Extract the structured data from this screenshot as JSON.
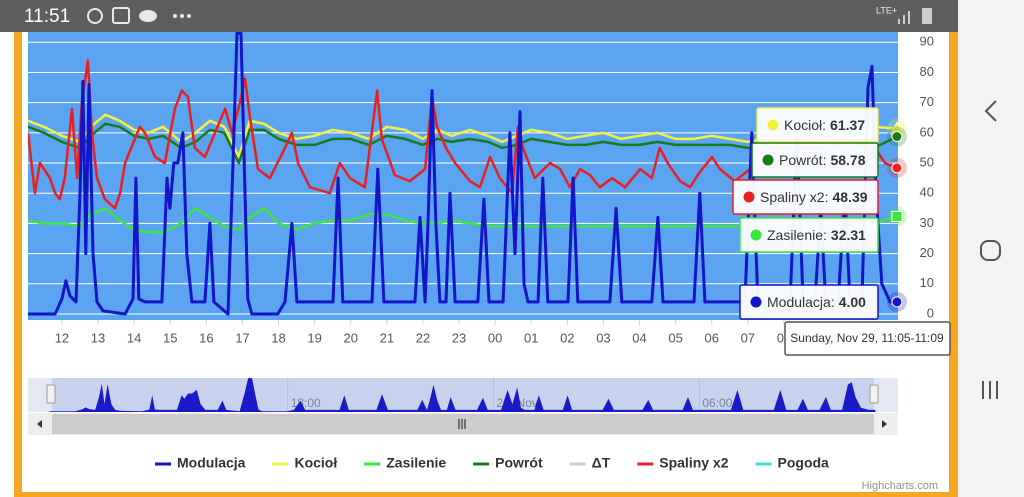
{
  "status_bar": {
    "time": "11:51",
    "network": "LTE+"
  },
  "chart_data": {
    "type": "line",
    "ylim": [
      -2,
      93.4
    ],
    "yticks": [
      0,
      10,
      20,
      30,
      40,
      50,
      60,
      70,
      80,
      90
    ],
    "xlim": [
      11.06,
      35.16
    ],
    "xticks": [
      12,
      13,
      14,
      15,
      16,
      17,
      18,
      19,
      20,
      21,
      22,
      23,
      {
        "value": 24,
        "label": "00"
      },
      {
        "value": 25,
        "label": "01"
      },
      {
        "value": 26,
        "label": "02"
      },
      {
        "value": 27,
        "label": "03"
      },
      {
        "value": 28,
        "label": "04"
      },
      {
        "value": 29,
        "label": "05"
      },
      {
        "value": 30,
        "label": "06"
      },
      {
        "value": 31,
        "label": "07"
      },
      {
        "value": 32,
        "label": "08"
      }
    ],
    "grid": true,
    "background": "#5aa4f2",
    "series": [
      {
        "name": "Modulacja",
        "color": "#1515c8",
        "visible": true,
        "x": [
          11.06,
          11.81,
          12.0,
          12.11,
          12.22,
          12.39,
          12.5,
          12.58,
          12.66,
          12.75,
          12.86,
          12.97,
          13.14,
          13.75,
          13.97,
          14.05,
          14.13,
          14.3,
          14.77,
          14.91,
          14.99,
          15.1,
          15.21,
          15.35,
          15.46,
          15.6,
          15.96,
          16.1,
          16.21,
          16.6,
          16.74,
          16.85,
          16.96,
          17.07,
          17.15,
          17.26,
          17.98,
          18.18,
          18.37,
          18.51,
          18.68,
          19.51,
          19.65,
          19.78,
          20.59,
          20.75,
          20.92,
          21.78,
          21.92,
          22.06,
          22.14,
          22.25,
          22.36,
          22.47,
          22.64,
          22.75,
          22.89,
          23.52,
          23.69,
          23.83,
          24.22,
          24.41,
          24.55,
          24.69,
          24.8,
          24.91,
          25.19,
          25.32,
          25.46,
          26.02,
          26.16,
          26.29,
          27.18,
          27.35,
          27.51,
          28.34,
          28.51,
          28.65,
          29.51,
          29.67,
          29.81,
          30.92,
          31.11,
          31.28,
          32.17,
          32.36,
          32.53,
          32.86,
          33.02,
          33.16,
          33.5,
          33.69,
          33.83,
          34.16,
          34.33,
          34.44,
          34.55,
          34.71,
          34.94,
          35.13
        ],
        "values": [
          0,
          0,
          5,
          11,
          6,
          4,
          40,
          77,
          20,
          76,
          20,
          4,
          1,
          0,
          5,
          45,
          5,
          4,
          4,
          45,
          35,
          50,
          50,
          60,
          20,
          4,
          4,
          30,
          4,
          0,
          50,
          93,
          93,
          40,
          5,
          0,
          0,
          4,
          30,
          4,
          4,
          4,
          45,
          4,
          4,
          48,
          4,
          4,
          32,
          4,
          30,
          74,
          30,
          4,
          4,
          40,
          4,
          4,
          38,
          4,
          4,
          60,
          20,
          67,
          10,
          4,
          4,
          45,
          4,
          4,
          45,
          4,
          4,
          35,
          4,
          4,
          32,
          4,
          4,
          40,
          4,
          4,
          60,
          4,
          4,
          60,
          4,
          4,
          35,
          4,
          4,
          40,
          4,
          4,
          75,
          82,
          40,
          10,
          4,
          4.0
        ]
      },
      {
        "name": "Kocioł",
        "color": "#f2f23c",
        "visible": true,
        "x": [
          11.06,
          11.5,
          12.0,
          12.5,
          12.8,
          13.2,
          13.6,
          14.0,
          14.4,
          14.8,
          15.3,
          15.7,
          16.1,
          16.5,
          16.9,
          17.2,
          17.6,
          18.0,
          18.5,
          19.0,
          19.5,
          20.0,
          20.5,
          21.0,
          21.5,
          22.0,
          22.4,
          22.8,
          23.3,
          23.8,
          24.2,
          24.6,
          25.0,
          25.5,
          26.0,
          26.5,
          27.0,
          27.5,
          28.0,
          28.5,
          29.0,
          29.5,
          30.0,
          30.5,
          31.0,
          31.5,
          32.0,
          32.5,
          33.0,
          33.5,
          34.0,
          34.5,
          35.13
        ],
        "values": [
          64,
          62,
          59,
          57,
          62,
          66,
          64,
          61,
          60,
          62,
          57,
          60,
          64,
          62,
          52,
          64,
          63,
          60,
          58,
          59,
          61,
          60,
          58,
          62,
          61,
          58,
          61,
          59,
          61,
          59,
          57,
          59,
          61,
          60,
          58,
          59,
          60,
          58,
          59,
          60,
          58,
          58,
          59,
          58,
          57,
          58,
          57,
          58,
          57,
          59,
          58,
          62,
          61.37
        ]
      },
      {
        "name": "Zasilenie",
        "color": "#3ce63c",
        "visible": true,
        "x": [
          11.06,
          11.5,
          12.0,
          12.5,
          12.8,
          13.2,
          13.6,
          14.0,
          14.4,
          14.8,
          15.3,
          15.7,
          16.1,
          16.5,
          16.9,
          17.2,
          17.6,
          18.0,
          18.5,
          19.0,
          19.5,
          20.0,
          20.5,
          21.0,
          21.5,
          22.0,
          22.4,
          22.8,
          23.3,
          23.8,
          24.2,
          24.6,
          25.0,
          25.5,
          26.0,
          26.5,
          27.0,
          27.5,
          28.0,
          28.5,
          29.0,
          29.5,
          30.0,
          30.5,
          31.0,
          31.5,
          32.0,
          32.5,
          33.0,
          33.5,
          34.0,
          34.5,
          35.13
        ],
        "values": [
          31,
          30,
          30,
          29,
          33,
          35,
          31,
          28,
          27,
          27,
          30,
          35,
          32,
          29,
          28,
          32,
          35,
          30,
          28,
          30,
          31,
          31,
          33,
          33,
          31,
          30,
          30,
          31,
          30,
          29,
          29,
          29,
          29,
          29,
          29,
          29,
          29,
          29,
          29,
          29,
          29,
          29,
          29,
          29,
          29,
          29,
          29,
          29,
          29,
          29,
          29,
          30,
          32.31
        ]
      },
      {
        "name": "Powrót",
        "color": "#1a7a1a",
        "visible": true,
        "x": [
          11.06,
          11.5,
          12.0,
          12.5,
          12.8,
          13.2,
          13.6,
          14.0,
          14.4,
          14.8,
          15.3,
          15.7,
          16.1,
          16.5,
          16.9,
          17.2,
          17.6,
          18.0,
          18.5,
          19.0,
          19.5,
          20.0,
          20.5,
          21.0,
          21.5,
          22.0,
          22.4,
          22.8,
          23.3,
          23.8,
          24.2,
          24.6,
          25.0,
          25.5,
          26.0,
          26.5,
          27.0,
          27.5,
          28.0,
          28.5,
          29.0,
          29.5,
          30.0,
          30.5,
          31.0,
          31.5,
          32.0,
          32.5,
          33.0,
          33.5,
          34.0,
          34.5,
          35.13
        ],
        "values": [
          62,
          60,
          57,
          55,
          59,
          63,
          62,
          59,
          58,
          59,
          55,
          57,
          61,
          60,
          50,
          61,
          61,
          58,
          56,
          56,
          58,
          58,
          56,
          59,
          58,
          56,
          58,
          57,
          58,
          57,
          55,
          56,
          58,
          57,
          56,
          56,
          57,
          56,
          56,
          57,
          56,
          56,
          56,
          56,
          55,
          55,
          55,
          55,
          55,
          56,
          56,
          55,
          58.78
        ]
      },
      {
        "name": "ΔT",
        "color": "#cccccc",
        "visible": false,
        "x": [],
        "values": []
      },
      {
        "name": "Spaliny x2",
        "color": "#e82020",
        "visible": true,
        "x": [
          11.06,
          11.25,
          11.39,
          11.67,
          11.81,
          11.94,
          12.08,
          12.28,
          12.42,
          12.55,
          12.72,
          12.83,
          12.97,
          13.19,
          13.47,
          13.61,
          13.75,
          14.02,
          14.16,
          14.3,
          14.58,
          14.85,
          15.13,
          15.32,
          15.49,
          15.68,
          15.96,
          16.24,
          16.52,
          16.71,
          16.93,
          17.07,
          17.21,
          17.43,
          17.76,
          18.18,
          18.37,
          18.54,
          18.87,
          19.42,
          19.7,
          19.98,
          20.39,
          20.73,
          20.86,
          21.22,
          21.64,
          22.06,
          22.25,
          22.39,
          22.64,
          22.89,
          23.3,
          23.58,
          23.86,
          24.13,
          24.47,
          24.63,
          24.77,
          25.1,
          25.52,
          25.8,
          26.07,
          26.35,
          26.63,
          26.9,
          27.24,
          27.6,
          28.02,
          28.34,
          28.56,
          28.78,
          29.12,
          29.4,
          29.67,
          30.01,
          30.23,
          30.64,
          31.06,
          31.47,
          31.89,
          32.44,
          33.0,
          33.55,
          34.11,
          34.52,
          34.8,
          35.13
        ],
        "values": [
          60,
          40,
          50,
          45,
          40,
          38,
          45,
          68,
          45,
          70,
          84,
          60,
          45,
          38,
          35,
          40,
          50,
          58,
          62,
          60,
          52,
          50,
          68,
          74,
          72,
          55,
          52,
          60,
          68,
          60,
          70,
          78,
          65,
          48,
          45,
          55,
          60,
          50,
          42,
          40,
          50,
          45,
          42,
          74,
          58,
          46,
          44,
          48,
          72,
          62,
          55,
          50,
          44,
          42,
          52,
          45,
          40,
          62,
          55,
          45,
          50,
          48,
          42,
          48,
          46,
          42,
          45,
          42,
          48,
          45,
          55,
          50,
          44,
          42,
          47,
          52,
          48,
          44,
          48,
          50,
          46,
          52,
          50,
          48,
          50,
          55,
          50,
          48.39
        ]
      },
      {
        "name": "Pogoda",
        "color": "#33e6e6",
        "visible": true,
        "x": [],
        "values": []
      }
    ],
    "tooltip": {
      "header": "Sunday, Nov 29, 11:05-11:09",
      "rows": [
        {
          "label": "Kocioł:",
          "value": "61.37"
        },
        {
          "label": "Powrót:",
          "value": "58.78"
        },
        {
          "label": "Spaliny x2:",
          "value": "48.39"
        },
        {
          "label": "Zasilenie:",
          "value": "32.31"
        },
        {
          "label": "Modulacja:",
          "value": "4.00"
        }
      ]
    },
    "navigator": {
      "xlim": [
        10.43,
        35.79
      ],
      "xticks": [
        {
          "value": 18,
          "label": "18:00"
        },
        {
          "value": 24,
          "label": "29. Nov"
        },
        {
          "value": 30,
          "label": "06:00"
        }
      ]
    },
    "credits": "Highcharts.com"
  }
}
